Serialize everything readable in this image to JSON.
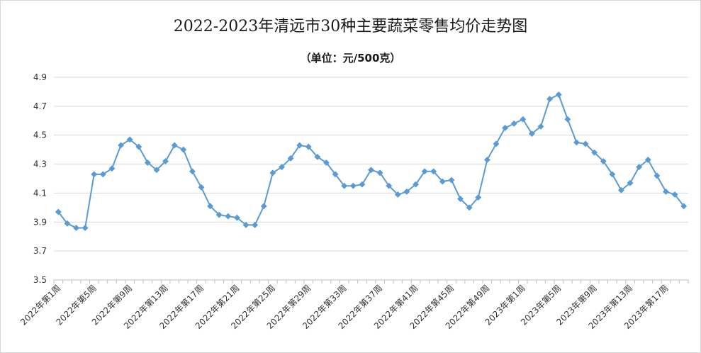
{
  "chart": {
    "title": "2022-2023年清远市30种主要蔬菜零售均价走势图",
    "subtitle": "（单位：元/500克）"
  },
  "colors": {
    "series": "#5b9bd5",
    "grid": "#d9d9d9",
    "axis": "#bfbfbf"
  },
  "chart_data": {
    "type": "line",
    "title": "2022-2023年清远市30种主要蔬菜零售均价走势图",
    "subtitle": "（单位：元/500克）",
    "ylim": [
      3.5,
      4.9
    ],
    "y_ticks": [
      "3.5",
      "3.7",
      "3.9",
      "4.1",
      "4.3",
      "4.5",
      "4.7",
      "4.9"
    ],
    "grid": true,
    "x_tick_labels": [
      "2022年第1周",
      "2022年第5周",
      "2022年第9周",
      "2022年第13周",
      "2022年第17周",
      "2022年第21周",
      "2022年第25周",
      "2022年第29周",
      "2022年第33周",
      "2022年第37周",
      "2022年第41周",
      "2022年第45周",
      "2022年第49周",
      "2023年第1周",
      "2023年第5周",
      "2023年第9周",
      "2023年第13周",
      "2023年第17周"
    ],
    "series": [
      {
        "values": [
          3.97,
          3.89,
          3.86,
          3.86,
          4.23,
          4.23,
          4.27,
          4.43,
          4.47,
          4.42,
          4.31,
          4.26,
          4.32,
          4.43,
          4.4,
          4.25,
          4.14,
          4.01,
          3.95,
          3.94,
          3.93,
          3.88,
          3.88,
          4.01,
          4.24,
          4.28,
          4.34,
          4.43,
          4.42,
          4.35,
          4.31,
          4.23,
          4.15,
          4.15,
          4.16,
          4.26,
          4.24,
          4.15,
          4.09,
          4.11,
          4.16,
          4.25,
          4.25,
          4.18,
          4.19,
          4.06,
          4.0,
          4.07,
          4.33,
          4.44,
          4.55,
          4.58,
          4.61,
          4.51,
          4.56,
          4.75,
          4.78,
          4.61,
          4.45,
          4.44,
          4.38,
          4.32,
          4.23,
          4.12,
          4.17,
          4.28,
          4.33,
          4.22,
          4.11,
          4.09,
          4.01
        ]
      }
    ]
  }
}
